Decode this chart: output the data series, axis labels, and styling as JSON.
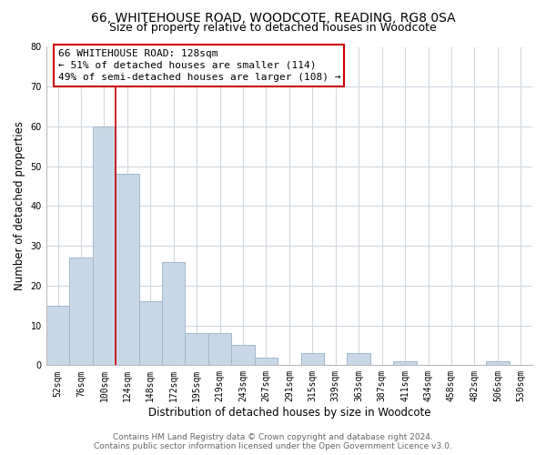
{
  "title": "66, WHITEHOUSE ROAD, WOODCOTE, READING, RG8 0SA",
  "subtitle": "Size of property relative to detached houses in Woodcote",
  "xlabel": "Distribution of detached houses by size in Woodcote",
  "ylabel": "Number of detached properties",
  "bar_labels": [
    "52sqm",
    "76sqm",
    "100sqm",
    "124sqm",
    "148sqm",
    "172sqm",
    "195sqm",
    "219sqm",
    "243sqm",
    "267sqm",
    "291sqm",
    "315sqm",
    "339sqm",
    "363sqm",
    "387sqm",
    "411sqm",
    "434sqm",
    "458sqm",
    "482sqm",
    "506sqm",
    "530sqm"
  ],
  "bar_values": [
    15,
    27,
    60,
    48,
    16,
    26,
    8,
    8,
    5,
    2,
    0,
    3,
    0,
    3,
    0,
    1,
    0,
    0,
    0,
    1,
    0
  ],
  "bar_color": "#c8d8e8",
  "bar_edge_color": "#a0b8cc",
  "ylim": [
    0,
    80
  ],
  "yticks": [
    0,
    10,
    20,
    30,
    40,
    50,
    60,
    70,
    80
  ],
  "property_line_color": "#cc0000",
  "annotation_line1": "66 WHITEHOUSE ROAD: 128sqm",
  "annotation_line2": "← 51% of detached houses are smaller (114)",
  "annotation_line3": "49% of semi-detached houses are larger (108) →",
  "footer_line1": "Contains HM Land Registry data © Crown copyright and database right 2024.",
  "footer_line2": "Contains public sector information licensed under the Open Government Licence v3.0.",
  "background_color": "#ffffff",
  "grid_color": "#d0d8e0",
  "title_fontsize": 10,
  "subtitle_fontsize": 9,
  "axis_label_fontsize": 8.5,
  "tick_fontsize": 7,
  "footer_fontsize": 6.5,
  "annotation_fontsize": 8
}
